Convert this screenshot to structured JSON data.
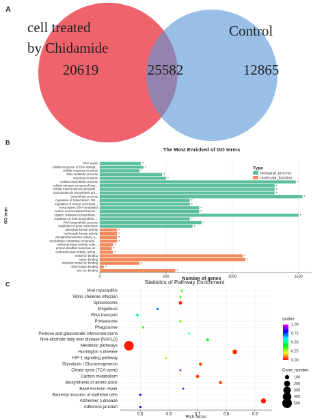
{
  "chart_data": [
    {
      "type": "venn",
      "panel_label": "A",
      "sets": [
        {
          "label_lines": [
            "cell treated",
            "by Chidamide"
          ],
          "color": "#ef636c"
        },
        {
          "label_lines": [
            "Control"
          ],
          "color": "#5b98d6"
        }
      ],
      "values": [
        20619,
        25582,
        12865
      ]
    },
    {
      "type": "bar",
      "panel_label": "B",
      "title": "The Most Enriched of GO terms",
      "xlabel": "Number of genes",
      "ylabel": "GO term",
      "legend_title": "Type",
      "significance_label": "*",
      "categories": [
        "DNA repair",
        "cellular response to DNA damag...",
        "cellular response to stress",
        "DNA metabolic process",
        "response to stress",
        "cellular biosynthetic process",
        "cellular nitrogen compound bios...",
        "cellular macromolecule biosynth...",
        "macromolecule biosynthetic pro...",
        "biosynthetic process",
        "regulation of transcription, DN...",
        "regulation of nucleic acid-temp...",
        "transcription, DNA-templated",
        "nucleic acid-templated transcri...",
        "organic substance biosynthetic...",
        "regulation of RNA biosynthetic ...",
        "RNA biosynthetic process",
        "regulation of gene expression",
        "adenylate kinase activity",
        "nucleoside kinase activity",
        "phosphotransferase activity, p...",
        "nucleobase-containing compound ...",
        "oxidoreductase activity, actin...",
        "protein-disulfide reductase ac...",
        "oxidoreductase activity, acting...",
        "metal ion binding",
        "cation binding",
        "transition metal ion binding",
        "nickel cation binding",
        "zinc ion binding"
      ],
      "series": [
        {
          "name": "biological_process",
          "color": "#5cbf9c",
          "values": [
            310,
            330,
            300,
            470,
            500,
            1480,
            1320,
            1320,
            1320,
            1530,
            680,
            680,
            750,
            750,
            1500,
            680,
            770,
            700,
            null,
            null,
            null,
            null,
            null,
            null,
            null,
            null,
            null,
            null,
            null,
            null
          ]
        },
        {
          "name": "molecular_function",
          "color": "#f28a5e",
          "values": [
            null,
            null,
            null,
            null,
            null,
            null,
            null,
            null,
            null,
            null,
            null,
            null,
            null,
            null,
            null,
            null,
            null,
            null,
            130,
            130,
            130,
            130,
            100,
            90,
            100,
            1080,
            1100,
            300,
            30,
            570
          ]
        }
      ],
      "xlim": [
        0,
        1600
      ],
      "xticks": [
        0,
        500,
        1000,
        1500
      ],
      "grid": true
    },
    {
      "type": "bubble",
      "panel_label": "C",
      "title": "Statistics of Pathway Enrichment",
      "xlabel": "Rich factor",
      "categories": [
        "Viral myocarditis",
        "Vibrio cholerae infection",
        "Spliceosome",
        "Shigellosis",
        "RNA transport",
        "Proteasome",
        "Phagosome",
        "Pentose and glucuronate interconversions",
        "Non-alcoholic fatty liver disease (NAFLD)",
        "Metabolic pathways",
        "Huntington s disease",
        "HIF-1 signaling pathway",
        "Glycolysis / Gluconeogenesis",
        "Citrate cycle (TCA cycle)",
        "Carbon metabolism",
        "Biosynthesis of amino acids",
        "Base excision repair",
        "Bacterial invasion of epithelial cells",
        "Alzheimer s disease",
        "Adherens junction"
      ],
      "x": [
        0.645,
        0.64,
        0.64,
        0.56,
        0.49,
        0.64,
        0.51,
        0.67,
        0.735,
        0.46,
        0.83,
        0.59,
        0.71,
        0.64,
        0.7,
        0.78,
        0.65,
        0.5,
        0.93,
        0.5
      ],
      "qvalue": [
        0.35,
        0.3,
        0.02,
        0.7,
        0.55,
        0.35,
        0.35,
        0.55,
        0.45,
        0.02,
        0.03,
        0.25,
        0.05,
        0.9,
        0.05,
        0.05,
        0.75,
        0.8,
        0.02,
        0.8
      ],
      "gene_number": [
        25,
        30,
        60,
        30,
        40,
        25,
        30,
        20,
        40,
        500,
        120,
        30,
        50,
        20,
        60,
        50,
        20,
        25,
        140,
        25
      ],
      "xlim": [
        0.43,
        0.96
      ],
      "xticks": [
        {
          "value": 0.5,
          "label": "0.5"
        },
        {
          "value": 0.6,
          "label": "0.6"
        },
        {
          "value": 0.7,
          "label": "0.7"
        },
        {
          "value": 0.8,
          "label": "0.8"
        },
        {
          "value": 0.9,
          "label": "0.9"
        }
      ],
      "grid": true,
      "color_title": "qvalue",
      "color_range": [
        0,
        1
      ],
      "colormap": [
        "#ff0000",
        "#ffff00",
        "#00ff00",
        "#00ffff",
        "#0000ff",
        "#ff00ff"
      ],
      "color_ticks": [
        {
          "value": 1,
          "label": "1.00"
        },
        {
          "value": 0.75,
          "label": "0.75"
        },
        {
          "value": 0.5,
          "label": "0.50"
        },
        {
          "value": 0.25,
          "label": "0.25"
        },
        {
          "value": 0,
          "label": "0.00"
        }
      ],
      "size_title": "Gene_number",
      "size_ticks": [
        100,
        200,
        300,
        400,
        500
      ]
    }
  ]
}
